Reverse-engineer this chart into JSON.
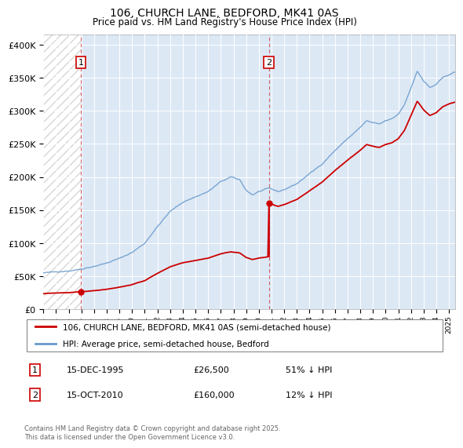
{
  "title_line1": "106, CHURCH LANE, BEDFORD, MK41 0AS",
  "title_line2": "Price paid vs. HM Land Registry's House Price Index (HPI)",
  "ylabel_ticks": [
    "£0",
    "£50K",
    "£100K",
    "£150K",
    "£200K",
    "£250K",
    "£300K",
    "£350K",
    "£400K"
  ],
  "ytick_values": [
    0,
    50000,
    100000,
    150000,
    200000,
    250000,
    300000,
    350000,
    400000
  ],
  "ylim": [
    0,
    415000
  ],
  "xlim_start": 1993.0,
  "xlim_end": 2025.5,
  "hpi_color": "#6699cc",
  "price_color": "#cc0000",
  "marker1_x": 1995.958,
  "marker1_y": 26500,
  "marker2_x": 2010.792,
  "marker2_y": 160000,
  "legend_price_label": "106, CHURCH LANE, BEDFORD, MK41 0AS (semi-detached house)",
  "legend_hpi_label": "HPI: Average price, semi-detached house, Bedford",
  "note1_date": "15-DEC-1995",
  "note1_price": "£26,500",
  "note1_hpi": "51% ↓ HPI",
  "note2_date": "15-OCT-2010",
  "note2_price": "£160,000",
  "note2_hpi": "12% ↓ HPI",
  "copyright_text": "Contains HM Land Registry data © Crown copyright and database right 2025.\nThis data is licensed under the Open Government Licence v3.0.",
  "plot_bg": "#dde8f5",
  "hatch_bg": "#ffffff"
}
